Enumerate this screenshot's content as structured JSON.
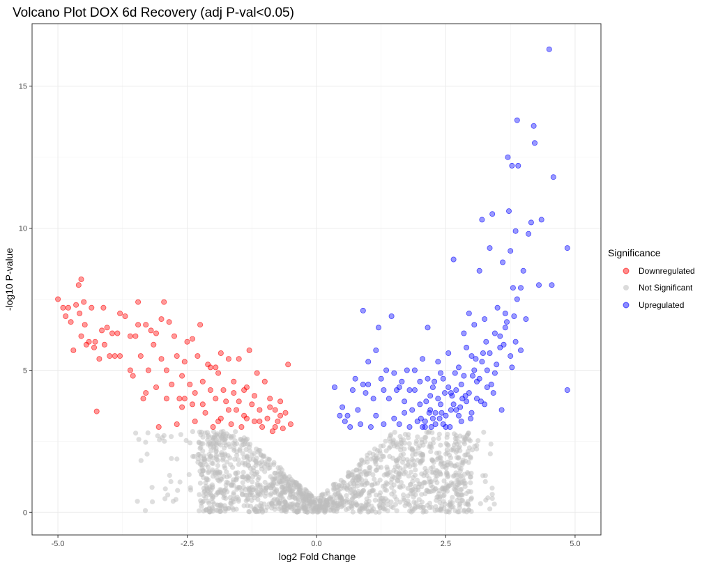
{
  "chart_data": {
    "type": "scatter",
    "title": "Volcano Plot DOX 6d Recovery (adj P-val<0.05)",
    "xlabel": "log2 Fold Change",
    "ylabel": "-log10 P-value",
    "xlim": [
      -5.5,
      5.5
    ],
    "ylim": [
      -0.8,
      17.2
    ],
    "x_ticks": [
      -5,
      -2.5,
      0,
      2.5,
      5
    ],
    "x_tick_labels": [
      "-5.0",
      "-2.5",
      "0.0",
      "2.5",
      "5.0"
    ],
    "y_ticks": [
      0,
      5,
      10,
      15
    ],
    "y_tick_labels": [
      "0",
      "5",
      "10",
      "15"
    ],
    "grid": true,
    "legend": {
      "title": "Significance",
      "placement": "right"
    },
    "series": [
      {
        "name": "Downregulated",
        "color": "#FF0000",
        "points": [
          [
            -5.0,
            7.5
          ],
          [
            -4.9,
            7.2
          ],
          [
            -4.85,
            6.9
          ],
          [
            -4.8,
            7.2
          ],
          [
            -4.75,
            6.7
          ],
          [
            -4.7,
            5.7
          ],
          [
            -4.65,
            7.3
          ],
          [
            -4.6,
            8.0
          ],
          [
            -4.55,
            8.2
          ],
          [
            -4.58,
            7.0
          ],
          [
            -4.5,
            7.4
          ],
          [
            -4.48,
            6.6
          ],
          [
            -4.45,
            5.9
          ],
          [
            -4.4,
            6.0
          ],
          [
            -4.35,
            7.2
          ],
          [
            -4.3,
            5.8
          ],
          [
            -4.28,
            6.0
          ],
          [
            -4.25,
            3.55
          ],
          [
            -4.2,
            5.4
          ],
          [
            -4.15,
            6.4
          ],
          [
            -4.12,
            7.2
          ],
          [
            -4.05,
            6.5
          ],
          [
            -4.0,
            5.5
          ],
          [
            -3.95,
            6.3
          ],
          [
            -3.9,
            5.5
          ],
          [
            -3.85,
            6.3
          ],
          [
            -3.8,
            7.0
          ],
          [
            -3.7,
            6.9
          ],
          [
            -3.6,
            6.2
          ],
          [
            -3.55,
            4.8
          ],
          [
            -3.5,
            6.2
          ],
          [
            -3.45,
            7.4
          ],
          [
            -3.4,
            5.5
          ],
          [
            -3.35,
            4.0
          ],
          [
            -3.3,
            6.6
          ],
          [
            -3.25,
            5.0
          ],
          [
            -3.2,
            6.4
          ],
          [
            -3.15,
            5.9
          ],
          [
            -3.1,
            4.4
          ],
          [
            -3.05,
            3.0
          ],
          [
            -3.0,
            6.8
          ],
          [
            -2.95,
            7.4
          ],
          [
            -2.9,
            5.0
          ],
          [
            -2.85,
            6.7
          ],
          [
            -2.8,
            4.5
          ],
          [
            -2.75,
            6.2
          ],
          [
            -2.7,
            5.5
          ],
          [
            -2.65,
            4.0
          ],
          [
            -2.6,
            3.7
          ],
          [
            -2.55,
            5.3
          ],
          [
            -2.5,
            6.0
          ],
          [
            -2.45,
            4.5
          ],
          [
            -2.4,
            3.8
          ],
          [
            -2.35,
            3.2
          ],
          [
            -2.3,
            5.5
          ],
          [
            -2.25,
            6.6
          ],
          [
            -2.2,
            4.6
          ],
          [
            -2.15,
            3.5
          ],
          [
            -2.1,
            5.2
          ],
          [
            -2.05,
            4.3
          ],
          [
            -2.0,
            3.0
          ],
          [
            -1.95,
            4.0
          ],
          [
            -1.9,
            4.9
          ],
          [
            -1.85,
            3.3
          ],
          [
            -1.8,
            4.3
          ],
          [
            -1.75,
            3.9
          ],
          [
            -1.7,
            5.4
          ],
          [
            -1.65,
            3.1
          ],
          [
            -1.6,
            4.6
          ],
          [
            -1.55,
            3.6
          ],
          [
            -1.5,
            5.4
          ],
          [
            -1.45,
            3.0
          ],
          [
            -1.4,
            4.3
          ],
          [
            -1.35,
            3.3
          ],
          [
            -1.3,
            5.7
          ],
          [
            -1.25,
            3.8
          ],
          [
            -1.2,
            3.2
          ],
          [
            -1.15,
            4.9
          ],
          [
            -1.1,
            3.6
          ],
          [
            -1.05,
            3.0
          ],
          [
            -1.0,
            4.6
          ],
          [
            -0.95,
            3.3
          ],
          [
            -0.9,
            4.0
          ],
          [
            -0.85,
            2.85
          ],
          [
            -0.8,
            3.6
          ],
          [
            -0.75,
            3.2
          ],
          [
            -0.7,
            3.9
          ],
          [
            -0.65,
            2.95
          ],
          [
            -0.6,
            3.5
          ],
          [
            -0.55,
            5.2
          ],
          [
            -0.5,
            3.1
          ],
          [
            -1.85,
            5.6
          ],
          [
            -2.7,
            3.1
          ],
          [
            -3.1,
            6.3
          ],
          [
            -3.6,
            5.0
          ],
          [
            -4.1,
            5.9
          ],
          [
            -2.4,
            6.1
          ],
          [
            -1.95,
            5.1
          ],
          [
            -1.4,
            3.4
          ],
          [
            -2.9,
            4.0
          ],
          [
            -2.2,
            3.8
          ],
          [
            -1.7,
            3.6
          ],
          [
            -1.2,
            4.1
          ],
          [
            -0.9,
            3.7
          ],
          [
            -3.3,
            4.2
          ],
          [
            -3.0,
            5.4
          ],
          [
            -2.55,
            4.0
          ],
          [
            -1.6,
            4.2
          ],
          [
            -2.05,
            5.1
          ],
          [
            -1.1,
            3.2
          ],
          [
            -0.7,
            3.4
          ],
          [
            -2.6,
            4.8
          ],
          [
            -3.45,
            6.6
          ],
          [
            -3.8,
            5.5
          ],
          [
            -4.55,
            6.2
          ],
          [
            -1.35,
            4.4
          ],
          [
            -0.8,
            3.0
          ],
          [
            -1.5,
            3.9
          ],
          [
            -2.35,
            4.2
          ],
          [
            -1.9,
            3.2
          ]
        ]
      },
      {
        "name": "Not Significant",
        "color": "#BEBEBE",
        "generator": "v-shaped cloud of non-significant genes"
      },
      {
        "name": "Upregulated",
        "color": "#0000FF",
        "points": [
          [
            0.35,
            4.4
          ],
          [
            0.45,
            3.4
          ],
          [
            0.55,
            3.2
          ],
          [
            0.6,
            3.4
          ],
          [
            0.7,
            4.3
          ],
          [
            0.75,
            4.7
          ],
          [
            0.8,
            3.6
          ],
          [
            0.85,
            3.1
          ],
          [
            0.9,
            4.5
          ],
          [
            0.95,
            4.2
          ],
          [
            1.0,
            5.3
          ],
          [
            1.05,
            3.0
          ],
          [
            1.1,
            4.0
          ],
          [
            1.15,
            3.4
          ],
          [
            1.2,
            6.5
          ],
          [
            1.25,
            4.7
          ],
          [
            1.3,
            3.1
          ],
          [
            1.35,
            5.0
          ],
          [
            1.4,
            4.0
          ],
          [
            1.45,
            6.9
          ],
          [
            1.5,
            3.3
          ],
          [
            1.55,
            4.3
          ],
          [
            1.6,
            3.1
          ],
          [
            1.65,
            4.6
          ],
          [
            1.7,
            3.5
          ],
          [
            1.75,
            5.0
          ],
          [
            1.8,
            4.3
          ],
          [
            1.85,
            3.6
          ],
          [
            1.9,
            4.3
          ],
          [
            1.95,
            3.2
          ],
          [
            2.0,
            3.8
          ],
          [
            2.05,
            5.4
          ],
          [
            2.1,
            3.0
          ],
          [
            2.15,
            6.5
          ],
          [
            2.2,
            3.6
          ],
          [
            2.25,
            4.4
          ],
          [
            2.3,
            3.1
          ],
          [
            2.35,
            5.3
          ],
          [
            2.4,
            3.8
          ],
          [
            2.45,
            4.7
          ],
          [
            2.5,
            3.4
          ],
          [
            2.55,
            5.6
          ],
          [
            2.6,
            4.2
          ],
          [
            2.65,
            8.9
          ],
          [
            2.7,
            3.6
          ],
          [
            2.75,
            5.1
          ],
          [
            2.8,
            4.5
          ],
          [
            2.85,
            6.3
          ],
          [
            2.9,
            3.9
          ],
          [
            2.95,
            7.0
          ],
          [
            3.0,
            5.5
          ],
          [
            3.05,
            6.6
          ],
          [
            3.1,
            4.0
          ],
          [
            3.15,
            8.5
          ],
          [
            3.2,
            10.3
          ],
          [
            3.25,
            6.8
          ],
          [
            3.3,
            5.0
          ],
          [
            3.35,
            9.3
          ],
          [
            3.4,
            10.5
          ],
          [
            3.45,
            6.3
          ],
          [
            3.5,
            7.2
          ],
          [
            3.55,
            5.8
          ],
          [
            3.6,
            8.8
          ],
          [
            3.65,
            6.5
          ],
          [
            3.7,
            12.5
          ],
          [
            3.72,
            10.6
          ],
          [
            3.75,
            9.2
          ],
          [
            3.78,
            12.2
          ],
          [
            3.8,
            7.9
          ],
          [
            3.85,
            9.9
          ],
          [
            3.88,
            13.8
          ],
          [
            3.9,
            12.2
          ],
          [
            3.95,
            7.9
          ],
          [
            4.0,
            8.5
          ],
          [
            4.1,
            9.8
          ],
          [
            4.15,
            10.2
          ],
          [
            4.2,
            13.6
          ],
          [
            4.22,
            13.0
          ],
          [
            4.3,
            8.0
          ],
          [
            4.35,
            10.3
          ],
          [
            4.5,
            16.3
          ],
          [
            4.55,
            8.0
          ],
          [
            4.58,
            11.8
          ],
          [
            4.85,
            9.3
          ],
          [
            4.85,
            4.3
          ],
          [
            0.9,
            7.1
          ],
          [
            1.15,
            5.7
          ],
          [
            2.1,
            3.2
          ],
          [
            2.2,
            4.1
          ],
          [
            2.3,
            3.5
          ],
          [
            2.4,
            4.9
          ],
          [
            2.5,
            3.0
          ],
          [
            2.6,
            3.6
          ],
          [
            2.7,
            4.3
          ],
          [
            2.8,
            3.2
          ],
          [
            2.9,
            5.8
          ],
          [
            3.0,
            3.5
          ],
          [
            3.1,
            4.6
          ],
          [
            3.2,
            5.3
          ],
          [
            3.3,
            4.4
          ],
          [
            2.15,
            4.7
          ],
          [
            2.25,
            3.3
          ],
          [
            2.35,
            4.0
          ],
          [
            2.45,
            3.1
          ],
          [
            2.55,
            4.4
          ],
          [
            2.65,
            3.8
          ],
          [
            2.75,
            3.4
          ],
          [
            2.85,
            4.8
          ],
          [
            2.95,
            4.2
          ],
          [
            3.05,
            5.0
          ],
          [
            3.15,
            4.7
          ],
          [
            3.25,
            3.8
          ],
          [
            3.35,
            5.6
          ],
          [
            3.45,
            4.9
          ],
          [
            3.55,
            6.2
          ],
          [
            3.65,
            7.0
          ],
          [
            3.75,
            5.5
          ],
          [
            3.85,
            6.0
          ],
          [
            3.95,
            5.7
          ],
          [
            4.05,
            6.8
          ],
          [
            2.05,
            3.0
          ],
          [
            2.12,
            3.9
          ],
          [
            2.18,
            3.5
          ],
          [
            2.28,
            4.6
          ],
          [
            2.38,
            3.3
          ],
          [
            2.48,
            4.2
          ],
          [
            2.58,
            3.0
          ],
          [
            2.68,
            4.9
          ],
          [
            2.78,
            3.7
          ],
          [
            2.88,
            4.1
          ],
          [
            2.98,
            3.3
          ],
          [
            3.08,
            5.4
          ],
          [
            3.18,
            3.9
          ],
          [
            3.28,
            6.0
          ],
          [
            3.38,
            4.5
          ],
          [
            3.48,
            5.2
          ],
          [
            3.58,
            3.6
          ],
          [
            3.68,
            6.7
          ],
          [
            3.78,
            5.1
          ],
          [
            3.88,
            7.5
          ],
          [
            2.02,
            3.3
          ],
          [
            2.22,
            3.0
          ],
          [
            2.42,
            3.5
          ],
          [
            2.62,
            4.1
          ],
          [
            2.82,
            4.0
          ],
          [
            3.02,
            4.8
          ],
          [
            3.22,
            5.6
          ],
          [
            3.42,
            4.2
          ],
          [
            3.62,
            5.9
          ],
          [
            3.82,
            6.9
          ],
          [
            1.6,
            4.4
          ],
          [
            1.8,
            3.0
          ],
          [
            1.7,
            3.9
          ],
          [
            1.9,
            5.0
          ],
          [
            2.0,
            4.6
          ],
          [
            1.5,
            4.9
          ],
          [
            1.3,
            4.3
          ],
          [
            0.65,
            3.0
          ],
          [
            0.5,
            3.7
          ],
          [
            1.0,
            4.5
          ]
        ]
      }
    ]
  }
}
